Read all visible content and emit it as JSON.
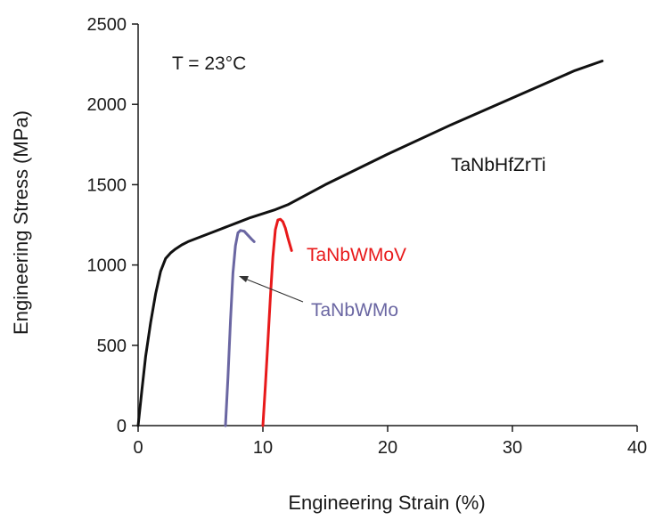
{
  "chart_data": {
    "type": "line",
    "title": "",
    "xlabel": "Engineering Strain  (%)",
    "ylabel": "Engineering Stress  (MPa)",
    "xlim": [
      0,
      40
    ],
    "ylim": [
      0,
      2500
    ],
    "xticks": [
      0,
      10,
      20,
      30,
      40
    ],
    "yticks": [
      0,
      500,
      1000,
      1500,
      2000,
      2500
    ],
    "grid": false,
    "annotation": "T = 23°C",
    "series": [
      {
        "name": "TaNbHfZrTi",
        "color": "#111111",
        "x": [
          0,
          0.3,
          0.6,
          1.0,
          1.4,
          1.8,
          2.2,
          2.6,
          3.0,
          3.5,
          4.0,
          5.0,
          6.0,
          7.0,
          8.0,
          9.0,
          10.0,
          11.0,
          12.0,
          15.0,
          20.0,
          25.0,
          30.0,
          35.0,
          37.2
        ],
        "y": [
          0,
          220,
          430,
          640,
          820,
          960,
          1040,
          1075,
          1100,
          1125,
          1145,
          1175,
          1205,
          1235,
          1265,
          1295,
          1320,
          1345,
          1375,
          1500,
          1690,
          1870,
          2040,
          2210,
          2270
        ]
      },
      {
        "name": "TaNbWMoV",
        "color": "#e8191a",
        "x": [
          10.0,
          10.2,
          10.4,
          10.6,
          10.8,
          11.0,
          11.2,
          11.4,
          11.6,
          11.8,
          12.0,
          12.3
        ],
        "y": [
          0,
          250,
          520,
          800,
          1050,
          1220,
          1280,
          1285,
          1270,
          1230,
          1170,
          1090
        ]
      },
      {
        "name": "TaNbWMo",
        "color": "#6a66a2",
        "x": [
          7.0,
          7.2,
          7.4,
          7.6,
          7.8,
          8.0,
          8.2,
          8.5,
          8.8,
          9.1,
          9.3
        ],
        "y": [
          0,
          300,
          650,
          950,
          1120,
          1200,
          1215,
          1210,
          1185,
          1160,
          1145
        ]
      }
    ]
  }
}
